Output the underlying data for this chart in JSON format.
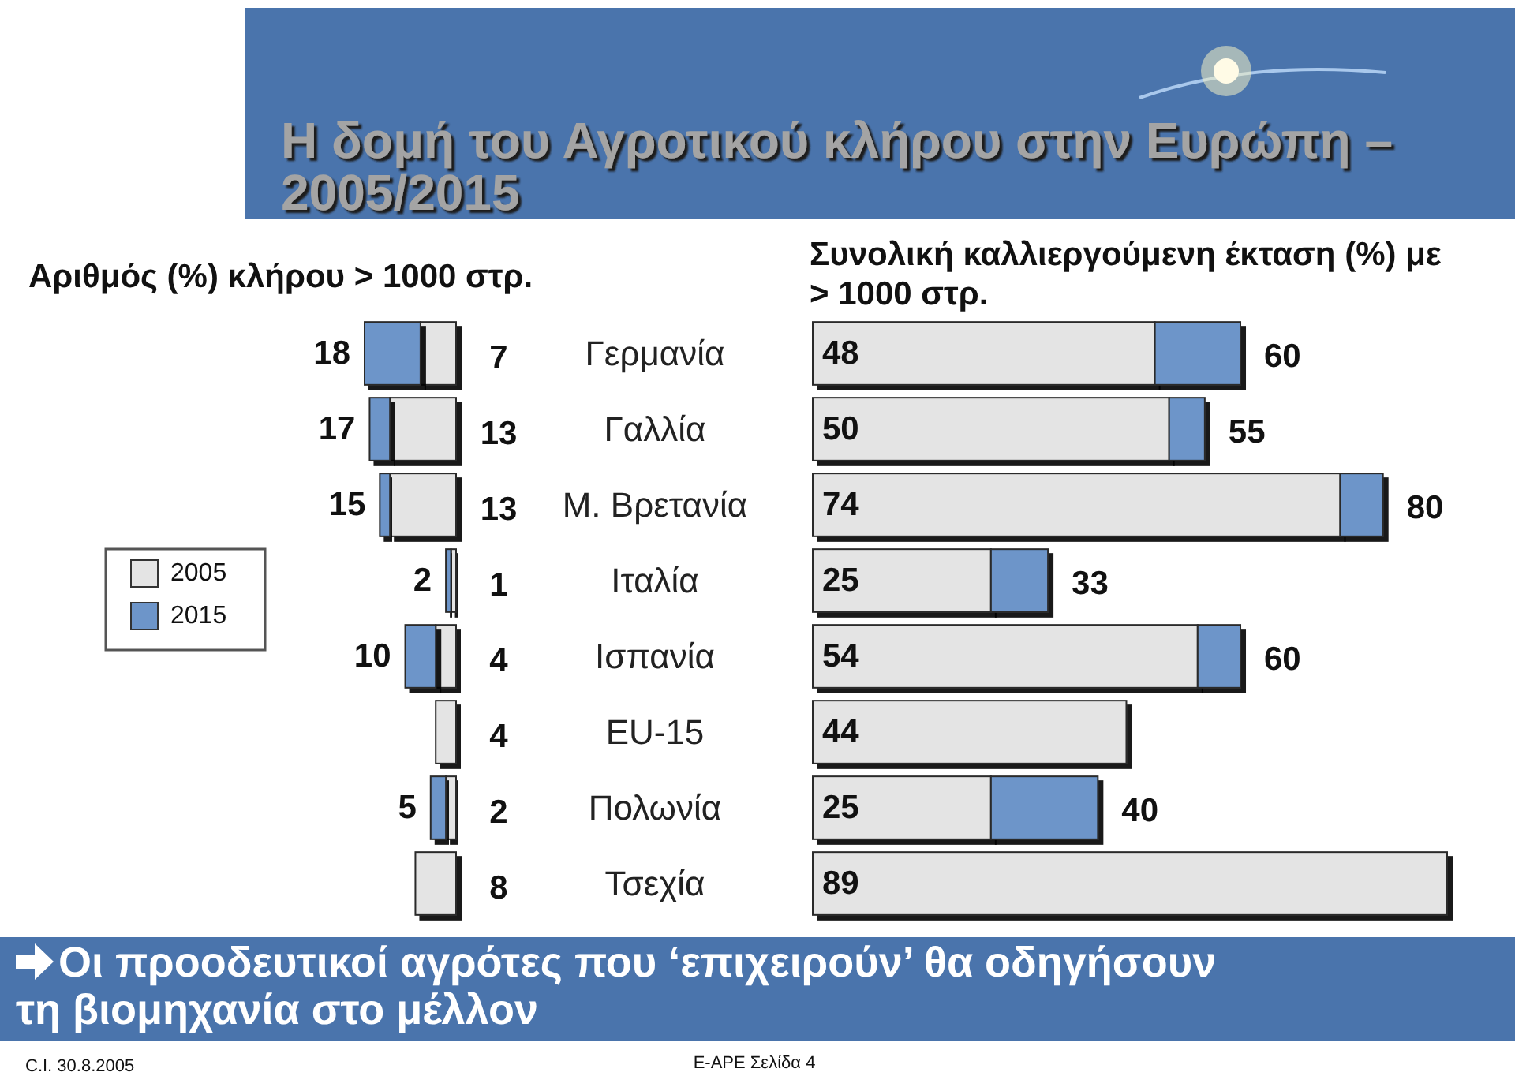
{
  "chart_data": [
    {
      "type": "bar",
      "title": "Η δομή του Αγροτικού κλήρου στην Ευρώπη – 2005/2015",
      "subtitle": "Αριθμός (%) κλήρου > 1000 στρ.",
      "categories": [
        "Γερμανία",
        "Γαλλία",
        "Μ. Βρετανία",
        "Ιταλία",
        "Ισπανία",
        "EU-15",
        "Πολωνία",
        "Τσεχία"
      ],
      "series": [
        {
          "name": "2005",
          "color": "#e4e4e4",
          "values": [
            7,
            13,
            13,
            1,
            4,
            4,
            2,
            8
          ],
          "value_labels": [
            "7",
            "13",
            "13",
            "1",
            "4",
            "4",
            "2",
            "8"
          ]
        },
        {
          "name": "2015",
          "color": "#6d95c9",
          "values": [
            11,
            4,
            2,
            1,
            6,
            null,
            3,
            null
          ]
        }
      ],
      "totals": [
        "18",
        "17",
        "15",
        "2",
        "10",
        null,
        "5",
        null
      ],
      "stacked": true,
      "orientation": "horizontal",
      "tick_labels": false,
      "legend": "left",
      "annotations": [
        "Οι προοδευτικοί αγρότες που ‘επιχειρούν’ θα οδηγήσουν τη βιομηχανία στο μέλλον",
        "C.I. 30.8.2005",
        "E-APE Σελίδα 4"
      ]
    },
    {
      "type": "bar",
      "title": "Συνολική καλλιεργούμενη έκταση (%) με > 1000 στρ.",
      "categories": [
        "Γερμανία",
        "Γαλλία",
        "Μ. Βρετανία",
        "Ιταλία",
        "Ισπανία",
        "EU-15",
        "Πολωνία",
        "Τσεχία"
      ],
      "series": [
        {
          "color": "#e4e4e4",
          "values": [
            48,
            50,
            74,
            25,
            54,
            44,
            25,
            89
          ],
          "value_labels": [
            "48",
            "50",
            "74",
            "25",
            "54",
            "44",
            "25",
            "89"
          ]
        },
        {
          "color": "#6d95c9",
          "values": [
            12,
            5,
            6,
            8,
            6,
            null,
            15,
            null
          ]
        }
      ],
      "totals": [
        "60",
        "55",
        "80",
        "33",
        "60",
        null,
        "40",
        null
      ],
      "stacked": true,
      "orientation": "horizontal",
      "tick_labels": "y"
    }
  ]
}
